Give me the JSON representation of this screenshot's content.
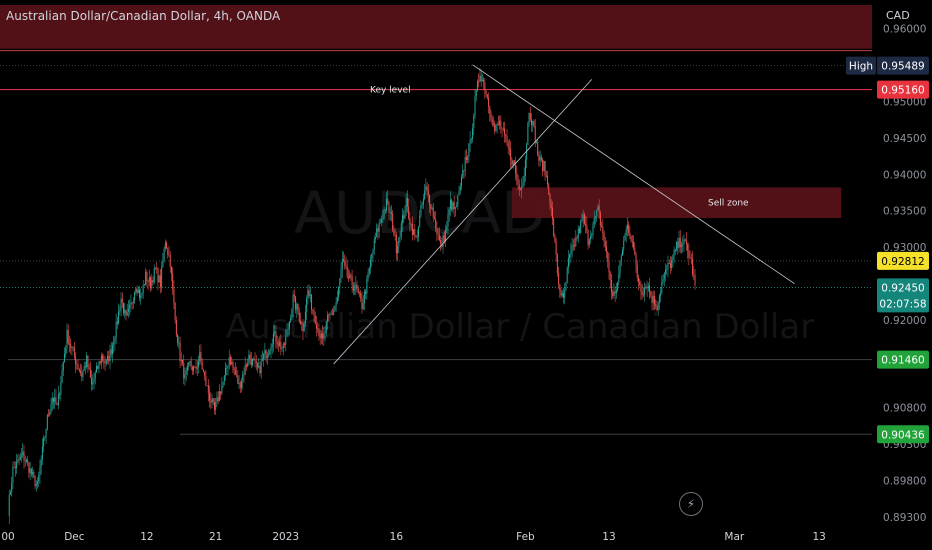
{
  "header": {
    "title": "Australian Dollar/Canadian Dollar, 4h, OANDA",
    "currency": "CAD"
  },
  "watermark": {
    "symbol": "AUDCAD",
    "description": "Australian Dollar / Canadian Dollar"
  },
  "colors": {
    "up": "#26a69a",
    "down": "#ef5350",
    "zone": "#5a1318",
    "key_line": "#f23645",
    "high_badge": "#1e2a44",
    "last_badge": "#f5e12a",
    "current_badge": "#14857b",
    "level_badge": "#21a33a",
    "key_badge": "#e8333f",
    "axis_text": "#8d929b"
  },
  "chart_data": {
    "type": "candlestick",
    "symbol": "AUDCAD",
    "timeframe": "4h",
    "source": "OANDA",
    "ylim": [
      0.8922,
      0.9632
    ],
    "y_ticks": [
      0.893,
      0.898,
      0.903,
      0.908,
      0.92,
      0.93,
      0.935,
      0.94,
      0.945,
      0.95,
      0.96
    ],
    "y_tick_labels": [
      "0.89300",
      "0.89800",
      "0.90300",
      "0.90800",
      "0.92000",
      "0.93000",
      "0.93500",
      "0.94000",
      "0.94500",
      "0.95000",
      "0.96000"
    ],
    "x_ticks": [
      {
        "label": "00",
        "i": 0
      },
      {
        "label": "Dec",
        "i": 54
      },
      {
        "label": "12",
        "i": 113
      },
      {
        "label": "21",
        "i": 169
      },
      {
        "label": "2023",
        "i": 226
      },
      {
        "label": "16",
        "i": 316
      },
      {
        "label": "Feb",
        "i": 421
      },
      {
        "label": "13",
        "i": 489
      },
      {
        "label": "Mar",
        "i": 591
      },
      {
        "label": "13",
        "i": 660
      }
    ],
    "ohlc_path": [
      [
        0,
        0.894
      ],
      [
        4,
        0.8995
      ],
      [
        8,
        0.9005
      ],
      [
        12,
        0.9015
      ],
      [
        16,
        0.9002
      ],
      [
        20,
        0.8985
      ],
      [
        24,
        0.8972
      ],
      [
        28,
        0.902
      ],
      [
        32,
        0.9065
      ],
      [
        36,
        0.9095
      ],
      [
        40,
        0.908
      ],
      [
        44,
        0.913
      ],
      [
        48,
        0.918
      ],
      [
        52,
        0.916
      ],
      [
        56,
        0.914
      ],
      [
        60,
        0.9125
      ],
      [
        64,
        0.9145
      ],
      [
        68,
        0.911
      ],
      [
        72,
        0.913
      ],
      [
        76,
        0.915
      ],
      [
        80,
        0.914
      ],
      [
        84,
        0.916
      ],
      [
        88,
        0.919
      ],
      [
        92,
        0.923
      ],
      [
        96,
        0.92
      ],
      [
        100,
        0.922
      ],
      [
        104,
        0.925
      ],
      [
        108,
        0.923
      ],
      [
        112,
        0.926
      ],
      [
        116,
        0.925
      ],
      [
        120,
        0.927
      ],
      [
        124,
        0.925
      ],
      [
        128,
        0.931
      ],
      [
        132,
        0.928
      ],
      [
        136,
        0.92
      ],
      [
        140,
        0.915
      ],
      [
        144,
        0.912
      ],
      [
        148,
        0.914
      ],
      [
        152,
        0.913
      ],
      [
        156,
        0.915
      ],
      [
        160,
        0.912
      ],
      [
        164,
        0.9095
      ],
      [
        168,
        0.9075
      ],
      [
        172,
        0.91
      ],
      [
        176,
        0.912
      ],
      [
        180,
        0.915
      ],
      [
        184,
        0.913
      ],
      [
        188,
        0.911
      ],
      [
        192,
        0.913
      ],
      [
        196,
        0.915
      ],
      [
        200,
        0.914
      ],
      [
        204,
        0.913
      ],
      [
        208,
        0.915
      ],
      [
        212,
        0.916
      ],
      [
        216,
        0.918
      ],
      [
        220,
        0.917
      ],
      [
        224,
        0.916
      ],
      [
        228,
        0.919
      ],
      [
        232,
        0.923
      ],
      [
        236,
        0.921
      ],
      [
        240,
        0.919
      ],
      [
        244,
        0.924
      ],
      [
        248,
        0.9215
      ],
      [
        252,
        0.919
      ],
      [
        256,
        0.917
      ],
      [
        260,
        0.92
      ],
      [
        264,
        0.921
      ],
      [
        268,
        0.923
      ],
      [
        272,
        0.928
      ],
      [
        276,
        0.926
      ],
      [
        280,
        0.925
      ],
      [
        284,
        0.924
      ],
      [
        288,
        0.922
      ],
      [
        292,
        0.925
      ],
      [
        296,
        0.929
      ],
      [
        300,
        0.932
      ],
      [
        304,
        0.934
      ],
      [
        308,
        0.936
      ],
      [
        312,
        0.934
      ],
      [
        316,
        0.93
      ],
      [
        320,
        0.933
      ],
      [
        324,
        0.936
      ],
      [
        328,
        0.933
      ],
      [
        332,
        0.931
      ],
      [
        336,
        0.935
      ],
      [
        340,
        0.938
      ],
      [
        344,
        0.936
      ],
      [
        348,
        0.933
      ],
      [
        352,
        0.93
      ],
      [
        356,
        0.932
      ],
      [
        360,
        0.936
      ],
      [
        364,
        0.935
      ],
      [
        368,
        0.938
      ],
      [
        372,
        0.942
      ],
      [
        376,
        0.944
      ],
      [
        380,
        0.95
      ],
      [
        384,
        0.954
      ],
      [
        388,
        0.952
      ],
      [
        392,
        0.949
      ],
      [
        396,
        0.946
      ],
      [
        400,
        0.947
      ],
      [
        404,
        0.945
      ],
      [
        408,
        0.943
      ],
      [
        412,
        0.941
      ],
      [
        416,
        0.938
      ],
      [
        420,
        0.94
      ],
      [
        424,
        0.949
      ],
      [
        428,
        0.946
      ],
      [
        432,
        0.942
      ],
      [
        436,
        0.941
      ],
      [
        440,
        0.938
      ],
      [
        444,
        0.932
      ],
      [
        448,
        0.925
      ],
      [
        452,
        0.9225
      ],
      [
        456,
        0.928
      ],
      [
        460,
        0.93
      ],
      [
        464,
        0.932
      ],
      [
        468,
        0.934
      ],
      [
        472,
        0.931
      ],
      [
        476,
        0.933
      ],
      [
        480,
        0.935
      ],
      [
        484,
        0.932
      ],
      [
        488,
        0.928
      ],
      [
        492,
        0.923
      ],
      [
        496,
        0.925
      ],
      [
        500,
        0.93
      ],
      [
        504,
        0.933
      ],
      [
        508,
        0.931
      ],
      [
        512,
        0.926
      ],
      [
        516,
        0.924
      ],
      [
        520,
        0.925
      ],
      [
        524,
        0.923
      ],
      [
        528,
        0.922
      ],
      [
        532,
        0.925
      ],
      [
        536,
        0.927
      ],
      [
        540,
        0.928
      ],
      [
        544,
        0.93
      ],
      [
        548,
        0.931
      ],
      [
        552,
        0.93
      ],
      [
        556,
        0.928
      ],
      [
        559,
        0.9245
      ]
    ],
    "last_index": 559,
    "annotations": {
      "key_level": {
        "label": "Key level",
        "price": 0.9516,
        "badge": "0.95160"
      },
      "sell_zone": {
        "label": "Sell zone",
        "from": 0.934,
        "to": 0.9382,
        "start_i": 410,
        "end_i": 678
      },
      "resistance_zone": {
        "from": 0.9572,
        "to": 0.9632
      },
      "high": {
        "label": "High",
        "price": 0.95489,
        "badge": "0.95489"
      },
      "last_price": {
        "price": 0.92812,
        "badge": "0.92812"
      },
      "current_price": {
        "price": 0.9245,
        "badge": "0.92450",
        "countdown": "02:07:58"
      },
      "support_1": {
        "price": 0.9146,
        "badge": "0.91460",
        "start_i": 0
      },
      "support_2": {
        "price": 0.90436,
        "badge": "0.90436",
        "start_i": 140
      },
      "trendlines": [
        {
          "from": [
            265,
            0.914
          ],
          "to": [
            475,
            0.953
          ]
        },
        {
          "from": [
            378,
            0.955
          ],
          "to": [
            640,
            0.925
          ]
        }
      ]
    }
  }
}
